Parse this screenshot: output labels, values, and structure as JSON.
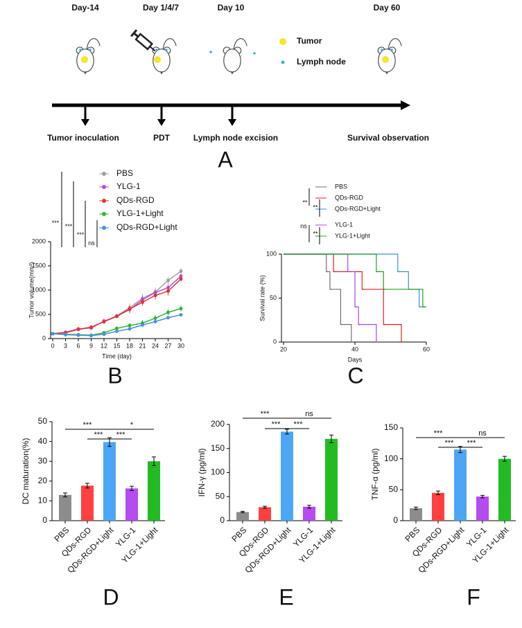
{
  "diagram": {
    "days": [
      "Day-14",
      "Day 1/4/7",
      "Day 10",
      "Day 60"
    ],
    "legend": [
      "Tumor",
      "Lymph node"
    ],
    "steps": [
      "Tumor inoculation",
      "PDT",
      "Lymph node excision",
      "Survival observation"
    ],
    "label": "A"
  },
  "chart_data": [
    {
      "type": "line",
      "label": "B",
      "x_label": "Time (day)",
      "y_label": "Tumor volume(mm³)",
      "x": [
        0,
        3,
        6,
        9,
        12,
        15,
        18,
        21,
        24,
        27,
        30
      ],
      "xlim": [
        0,
        30
      ],
      "xticks": [
        0,
        3,
        6,
        9,
        12,
        15,
        18,
        21,
        24,
        27,
        30
      ],
      "ylim": [
        0,
        2000
      ],
      "yticks": [
        0,
        500,
        1000,
        1500,
        2000
      ],
      "series": [
        {
          "name": "PBS",
          "color": "#a0a0a0",
          "values": [
            100,
            130,
            190,
            240,
            350,
            470,
            640,
            830,
            960,
            1200,
            1390
          ],
          "errors": [
            15,
            25,
            30,
            40,
            50,
            40,
            80,
            90,
            90,
            70,
            60
          ]
        },
        {
          "name": "YLG-1",
          "color": "#b44ce0",
          "values": [
            100,
            130,
            200,
            220,
            360,
            460,
            600,
            800,
            950,
            1050,
            1290
          ],
          "errors": [
            15,
            20,
            30,
            40,
            50,
            40,
            80,
            70,
            80,
            70,
            60
          ]
        },
        {
          "name": "QDs-RGD",
          "color": "#e83030",
          "values": [
            100,
            120,
            190,
            230,
            350,
            460,
            610,
            750,
            890,
            980,
            1230
          ],
          "errors": [
            15,
            20,
            30,
            40,
            50,
            40,
            70,
            70,
            80,
            90,
            50
          ]
        },
        {
          "name": "YLG-1+Light",
          "color": "#2db82d",
          "values": [
            100,
            90,
            80,
            70,
            120,
            210,
            270,
            320,
            420,
            540,
            620
          ],
          "errors": [
            10,
            15,
            15,
            15,
            20,
            40,
            50,
            60,
            60,
            60,
            60
          ]
        },
        {
          "name": "QDs-RGD+Light",
          "color": "#4a90e2",
          "values": [
            100,
            80,
            70,
            60,
            90,
            150,
            200,
            280,
            350,
            430,
            490
          ],
          "errors": [
            10,
            10,
            10,
            10,
            15,
            20,
            30,
            30,
            40,
            30,
            30
          ]
        }
      ],
      "annotations": [
        "***",
        "***",
        "***",
        "ns"
      ]
    },
    {
      "type": "step",
      "label": "C",
      "x_label": "Days",
      "y_label": "Survival rate (%)",
      "xlim": [
        20,
        60
      ],
      "xticks": [
        20,
        40,
        60
      ],
      "ylim": [
        0,
        100
      ],
      "yticks": [
        0,
        50,
        100
      ],
      "series": [
        {
          "name": "PBS",
          "color": "#707070",
          "x": [
            20,
            32,
            33,
            36,
            39
          ],
          "values": [
            100,
            80,
            60,
            20,
            0
          ]
        },
        {
          "name": "QDs-RGD",
          "color": "#e02020",
          "x": [
            20,
            34,
            42,
            48,
            53
          ],
          "values": [
            100,
            80,
            60,
            20,
            0
          ]
        },
        {
          "name": "QDs-RGD+Light",
          "color": "#3a8ee0",
          "x": [
            20,
            52,
            55,
            58
          ],
          "values": [
            100,
            80,
            60,
            40
          ]
        },
        {
          "name": "YLG-1",
          "color": "#b040e0",
          "x": [
            20,
            38,
            40,
            41,
            46
          ],
          "values": [
            100,
            80,
            40,
            20,
            0
          ]
        },
        {
          "name": "YLG-1+Light",
          "color": "#20a020",
          "x": [
            20,
            46,
            48,
            59
          ],
          "values": [
            100,
            80,
            60,
            40
          ]
        }
      ],
      "annotations": [
        "**",
        "**",
        "ns",
        "**"
      ]
    },
    {
      "type": "bar",
      "label": "D",
      "y_label": "DC maturation(%)",
      "categories": [
        "PBS",
        "QDs-RGD",
        "QDs-RGD+Light",
        "YLG-1",
        "YLG-1+Light"
      ],
      "values": [
        13,
        17.7,
        39.7,
        16.3,
        30
      ],
      "errors": [
        1,
        1.2,
        2.2,
        1.1,
        2.2
      ],
      "colors": [
        "#8c8c8c",
        "#ff4040",
        "#4da6f5",
        "#b44cf0",
        "#22bb22"
      ],
      "ylim": [
        0,
        50
      ],
      "yticks": [
        0,
        10,
        20,
        30,
        40,
        50
      ],
      "annotations": [
        "***",
        "***",
        "*",
        "***"
      ]
    },
    {
      "type": "bar",
      "label": "E",
      "y_label": "IFN-γ (pg/ml)",
      "categories": [
        "PBS",
        "QDs-RGD",
        "QDs-RGD+Light",
        "YLG-1",
        "YLG-1+Light"
      ],
      "values": [
        18,
        28,
        185,
        29,
        170
      ],
      "errors": [
        1.5,
        2,
        5,
        3,
        8
      ],
      "colors": [
        "#8c8c8c",
        "#ff4040",
        "#4da6f5",
        "#b44cf0",
        "#22bb22"
      ],
      "ylim": [
        0,
        200
      ],
      "yticks": [
        0,
        50,
        100,
        150,
        200
      ],
      "annotations": [
        "***",
        "***",
        "ns",
        "***"
      ]
    },
    {
      "type": "bar",
      "label": "F",
      "y_label": "TNF-α (pg/ml)",
      "categories": [
        "PBS",
        "QDs-RGD",
        "QDs-RGD+Light",
        "YLG-1",
        "YLG-1+Light"
      ],
      "values": [
        20,
        45,
        115,
        39,
        100
      ],
      "errors": [
        2,
        3,
        5,
        2,
        4
      ],
      "colors": [
        "#8c8c8c",
        "#ff4040",
        "#4da6f5",
        "#b44cf0",
        "#22bb22"
      ],
      "ylim": [
        0,
        150
      ],
      "yticks": [
        0,
        50,
        100,
        150
      ],
      "annotations": [
        "***",
        "***",
        "ns",
        "***"
      ]
    }
  ]
}
